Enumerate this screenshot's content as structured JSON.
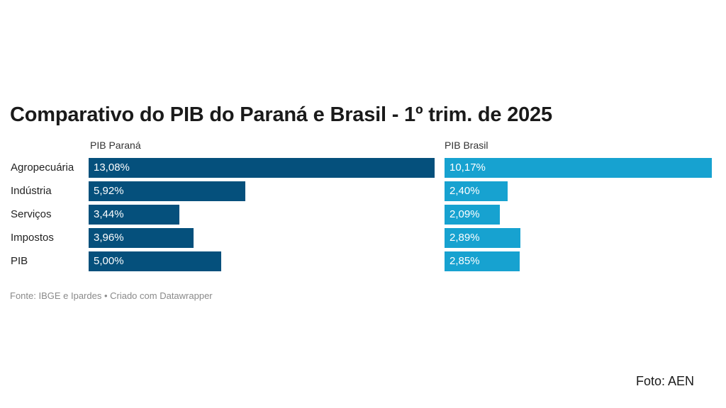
{
  "chart_data": {
    "type": "bar",
    "orientation": "horizontal",
    "title": "Comparativo do PIB do Paraná e Brasil - 1º trim. de 2025",
    "categories": [
      "Agropecuária",
      "Indústria",
      "Serviços",
      "Impostos",
      "PIB"
    ],
    "series": [
      {
        "name": "PIB Paraná",
        "values": [
          13.08,
          5.92,
          3.44,
          3.96,
          5.0
        ],
        "labels": [
          "13,08%",
          "5,92%",
          "3,44%",
          "3,96%",
          "5,00%"
        ],
        "color": "#05507c"
      },
      {
        "name": "PIB Brasil",
        "values": [
          10.17,
          2.4,
          2.09,
          2.89,
          2.85
        ],
        "labels": [
          "10,17%",
          "2,40%",
          "2,09%",
          "2,89%",
          "2,85%"
        ],
        "color": "#17a2d0"
      }
    ],
    "grid": false,
    "legend": "panel-headers"
  },
  "footer": {
    "source": "Fonte: IBGE e Ipardes • Criado com Datawrapper",
    "photo_credit": "Foto: AEN"
  }
}
